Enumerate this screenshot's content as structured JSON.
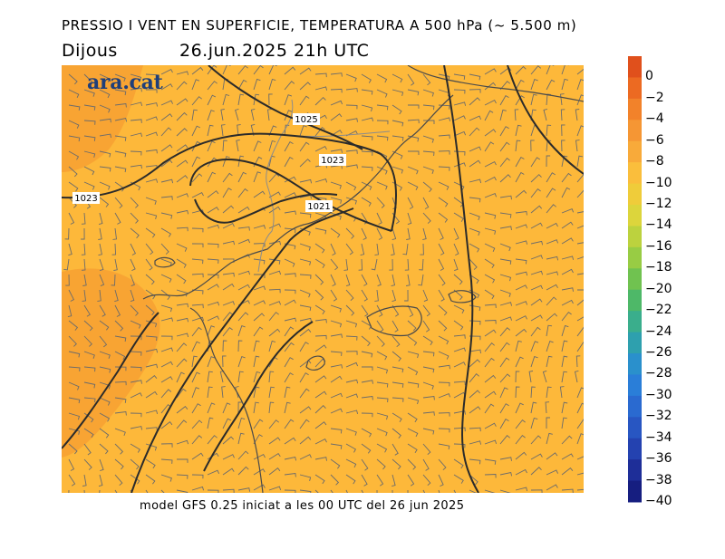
{
  "header": {
    "title": "PRESSIO I VENT EN SUPERFICIE, TEMPERATURA A 500 hPa (~ 5.500 m)",
    "day": "Dijous",
    "datetime": "26.jun.2025 21h UTC"
  },
  "logo": {
    "text": "ara.cat"
  },
  "footer": {
    "text": "model GFS 0.25 iniciat a les 00 UTC del 26 jun 2025"
  },
  "isobars": [
    {
      "label": "1025"
    },
    {
      "label": "1023"
    },
    {
      "label": "1021"
    },
    {
      "label": "1023"
    }
  ],
  "colorbar": {
    "labels": [
      "0",
      "−2",
      "−4",
      "−6",
      "−8",
      "−10",
      "−12",
      "−14",
      "−16",
      "−18",
      "−20",
      "−22",
      "−24",
      "−26",
      "−28",
      "−30",
      "−32",
      "−34",
      "−36",
      "−38",
      "−40"
    ],
    "colors": [
      "#e0501c",
      "#ec6a22",
      "#f2822a",
      "#f59634",
      "#f8aa3a",
      "#fabe3c",
      "#efcc3a",
      "#dcd53c",
      "#bcd23e",
      "#98cc44",
      "#70c250",
      "#4eb868",
      "#3aae8c",
      "#2ea0ae",
      "#2a90cc",
      "#2a7ed8",
      "#2a6ad0",
      "#2856c2",
      "#2442b0",
      "#1e2e98",
      "#161e80"
    ]
  },
  "field_colors": {
    "main": "#fdb83a",
    "warm": "#f8a433"
  }
}
